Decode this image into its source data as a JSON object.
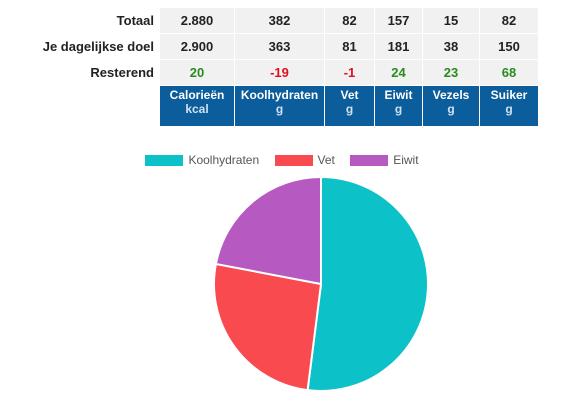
{
  "colors": {
    "header_bg": "#0b5d9b",
    "positive": "#2a8a1e",
    "negative": "#e0101a",
    "cell_bg": "#f1f1f1"
  },
  "table": {
    "rows": [
      {
        "label": "Totaal",
        "values": [
          "2.880",
          "382",
          "82",
          "157",
          "15",
          "82"
        ]
      },
      {
        "label": "Je dagelijkse doel",
        "values": [
          "2.900",
          "363",
          "81",
          "181",
          "38",
          "150"
        ]
      },
      {
        "label": "Resterend",
        "values": [
          "20",
          "-19",
          "-1",
          "24",
          "23",
          "68"
        ]
      }
    ],
    "headers": [
      {
        "name": "Calorieën",
        "unit": "kcal"
      },
      {
        "name": "Koolhydraten",
        "unit": "g"
      },
      {
        "name": "Vet",
        "unit": "g"
      },
      {
        "name": "Eiwit",
        "unit": "g"
      },
      {
        "name": "Vezels",
        "unit": "g"
      },
      {
        "name": "Suiker",
        "unit": "g"
      }
    ]
  },
  "chart_data": {
    "type": "pie",
    "labels": [
      "Koolhydraten",
      "Vet",
      "Eiwit"
    ],
    "values": [
      52,
      26,
      22
    ],
    "colors": [
      "#0cc1c8",
      "#f94b4f",
      "#b65ac1"
    ],
    "legend": "top",
    "start": "top",
    "direction": "clockwise"
  }
}
